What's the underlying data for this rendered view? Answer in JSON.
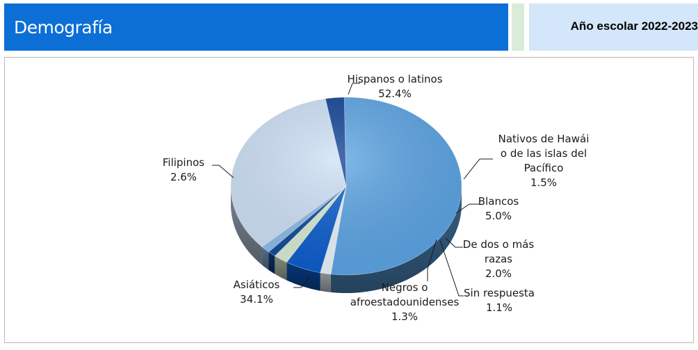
{
  "header": {
    "title": "Demografía",
    "year": "Año escolar 2022-2023"
  },
  "colors": {
    "header_blue": "#0b6fd6",
    "header_light": "#d4e6f9",
    "accent_green": "#d9ecd9"
  },
  "chart_data": {
    "type": "pie",
    "style": "3d",
    "legend": "none",
    "categories": [
      "Hispanos o latinos",
      "Nativos de Hawái o de las islas del Pacífico",
      "Blancos",
      "De dos o más razas",
      "Sin respuesta",
      "Negros o afroestadounidenses",
      "Asiáticos",
      "Filipinos"
    ],
    "values": [
      52.4,
      1.5,
      5.0,
      2.0,
      1.1,
      1.3,
      34.1,
      2.6
    ],
    "slices": [
      {
        "name": "Hispanos o latinos",
        "value": 52.4,
        "lines": [
          "Hispanos o latinos",
          "52.4%"
        ],
        "color": "#5aa3e3"
      },
      {
        "name": "Nativos de Hawái o de las islas del Pacífico",
        "value": 1.5,
        "lines": [
          "Nativos de Hawái",
          "o de las islas del",
          "Pacífico",
          "1.5%"
        ],
        "color": "#e8f3fb"
      },
      {
        "name": "Blancos",
        "value": 5.0,
        "lines": [
          "Blancos",
          "5.0%"
        ],
        "color": "#0a5ccc"
      },
      {
        "name": "De dos o más razas",
        "value": 2.0,
        "lines": [
          "De dos o más",
          "razas",
          "2.0%"
        ],
        "color": "#d7ecd3"
      },
      {
        "name": "Sin respuesta",
        "value": 1.1,
        "lines": [
          "Sin respuesta",
          "1.1%"
        ],
        "color": "#10489a"
      },
      {
        "name": "Negros o afroestadounidenses",
        "value": 1.3,
        "lines": [
          "Negros o",
          "afroestadounidenses",
          "1.3%"
        ],
        "color": "#8cbbe8"
      },
      {
        "name": "Asiáticos",
        "value": 34.1,
        "lines": [
          "Asiáticos",
          "34.1%"
        ],
        "color": "#cde0f6"
      },
      {
        "name": "Filipinos",
        "value": 2.6,
        "lines": [
          "Filipinos",
          "2.6%"
        ],
        "color": "#0d3f94"
      }
    ]
  }
}
